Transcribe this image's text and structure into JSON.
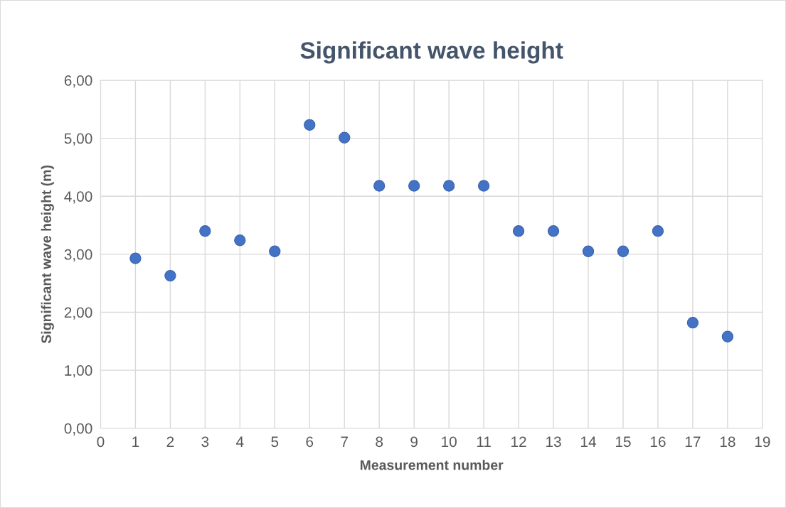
{
  "chart_data": {
    "type": "scatter",
    "title": "Significant wave height",
    "xlabel": "Measurement number",
    "ylabel": "Significant wave height (m)",
    "x": [
      1,
      2,
      3,
      4,
      5,
      6,
      7,
      8,
      9,
      10,
      11,
      12,
      13,
      14,
      15,
      16,
      17,
      18
    ],
    "values": [
      2.93,
      2.63,
      3.4,
      3.24,
      3.05,
      5.23,
      5.01,
      4.18,
      4.18,
      4.18,
      4.18,
      3.4,
      3.4,
      3.05,
      3.05,
      3.4,
      1.82,
      1.58
    ],
    "color": "#4472c4",
    "marker": "circle",
    "grid": true,
    "xlim": [
      0,
      19
    ],
    "xticks": [
      0,
      1,
      2,
      3,
      4,
      5,
      6,
      7,
      8,
      9,
      10,
      11,
      12,
      13,
      14,
      15,
      16,
      17,
      18,
      19
    ],
    "ylim": [
      0,
      6
    ],
    "yticks": [
      {
        "value": 0,
        "label": "0,00"
      },
      {
        "value": 1,
        "label": "1,00"
      },
      {
        "value": 2,
        "label": "2,00"
      },
      {
        "value": 3,
        "label": "3,00"
      },
      {
        "value": 4,
        "label": "4,00"
      },
      {
        "value": 5,
        "label": "5,00"
      },
      {
        "value": 6,
        "label": "6,00"
      }
    ]
  }
}
